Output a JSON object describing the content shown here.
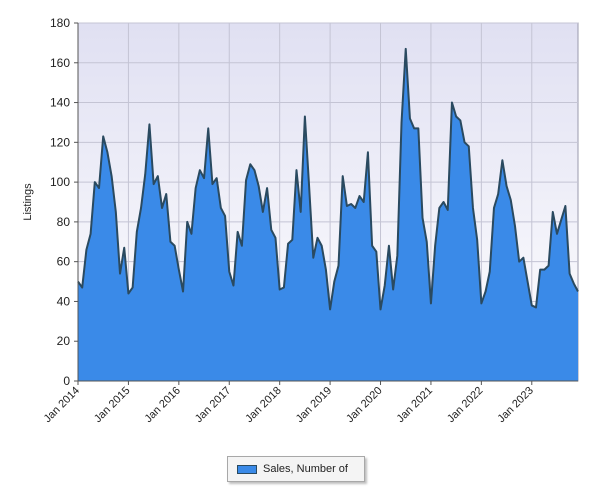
{
  "colors": {
    "area_fill": "#3a8ae8",
    "line": "#2a4a60",
    "plot_bg_top": "#e0e0f2",
    "plot_bg_bottom": "#ffffff",
    "grid": "#c4c4d4"
  },
  "chart_data": {
    "type": "area",
    "title": "",
    "xlabel": "",
    "ylabel": "Listings",
    "ylim": [
      0,
      180
    ],
    "yticks": [
      0,
      20,
      40,
      60,
      80,
      100,
      120,
      140,
      160,
      180
    ],
    "xticks": [
      "Jan 2014",
      "Jan 2015",
      "Jan 2016",
      "Jan 2017",
      "Jan 2018",
      "Jan 2019",
      "Jan 2020",
      "Jan 2021",
      "Jan 2022",
      "Jan 2023"
    ],
    "grid": true,
    "legend_position": "bottom-center",
    "series": [
      {
        "name": "Sales, Number of",
        "start": "Jan 2014",
        "frequency": "monthly",
        "values": [
          50,
          47,
          66,
          74,
          100,
          97,
          123,
          115,
          103,
          85,
          54,
          67,
          44,
          47,
          75,
          87,
          104,
          129,
          99,
          103,
          87,
          94,
          70,
          68,
          56,
          45,
          80,
          74,
          97,
          106,
          102,
          127,
          99,
          102,
          87,
          83,
          55,
          48,
          75,
          68,
          101,
          109,
          106,
          98,
          85,
          97,
          76,
          72,
          46,
          47,
          69,
          71,
          106,
          85,
          133,
          98,
          62,
          72,
          68,
          56,
          36,
          50,
          58,
          103,
          88,
          89,
          87,
          93,
          90,
          115,
          68,
          65,
          36,
          48,
          68,
          46,
          63,
          130,
          167,
          132,
          127,
          127,
          82,
          70,
          39,
          68,
          87,
          90,
          86,
          140,
          133,
          131,
          120,
          118,
          87,
          71,
          39,
          45,
          55,
          87,
          94,
          111,
          98,
          91,
          78,
          60,
          62,
          50,
          38,
          37,
          56,
          56,
          58,
          85,
          74,
          81,
          88,
          54,
          49,
          45
        ]
      }
    ]
  },
  "legend": {
    "label": "Sales, Number of"
  }
}
